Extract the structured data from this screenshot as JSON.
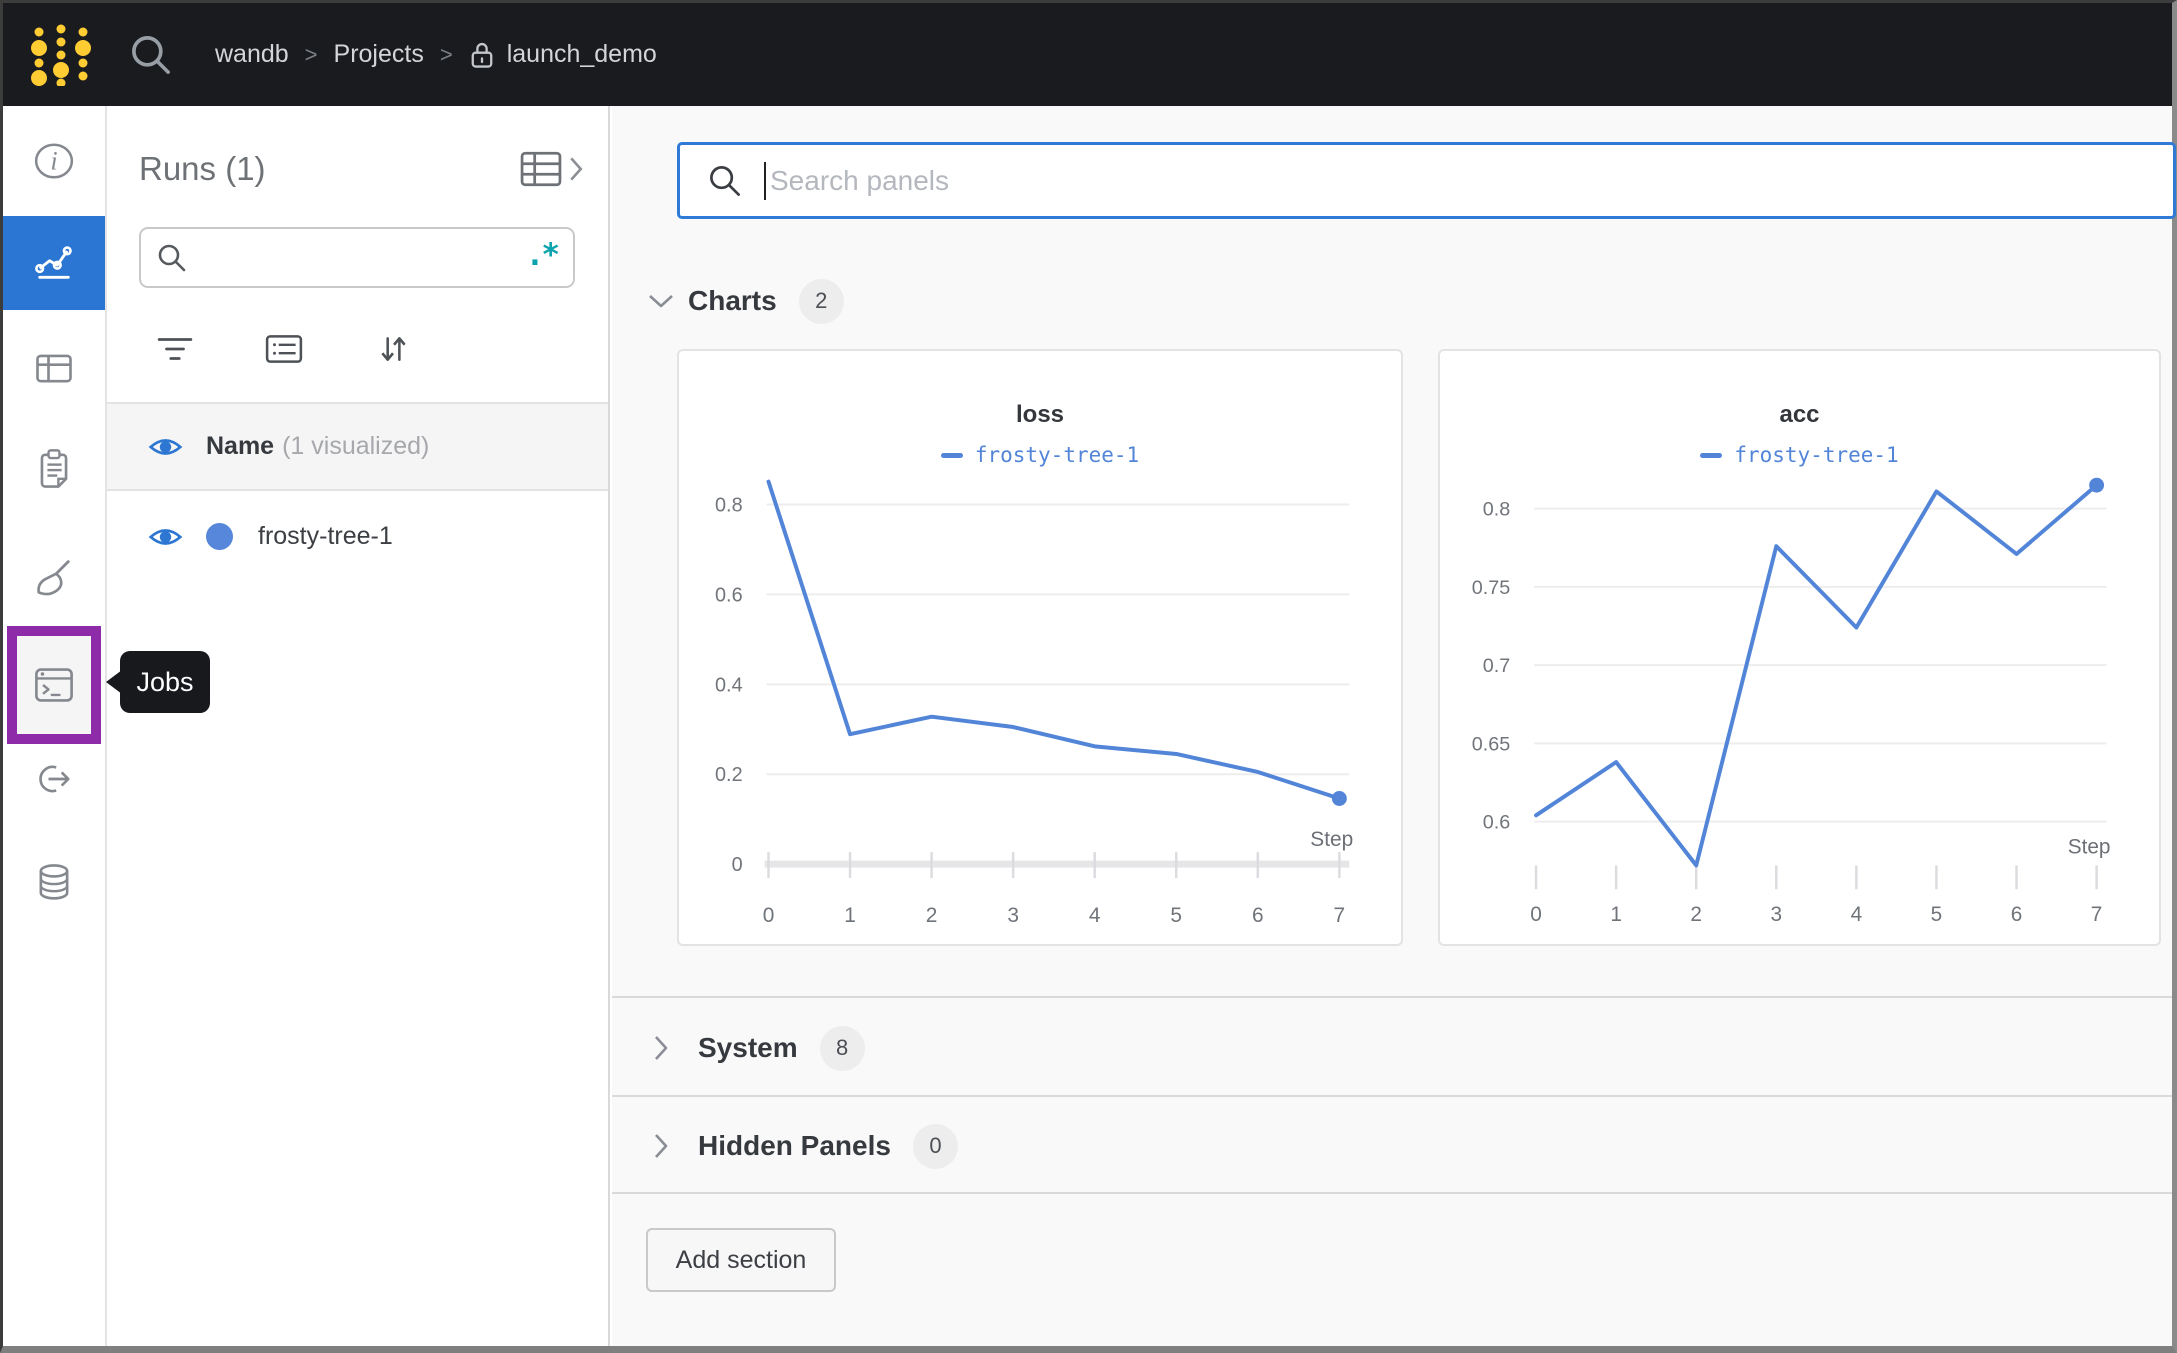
{
  "navbar": {
    "breadcrumb": {
      "org": "wandb",
      "section": "Projects",
      "project": "launch_demo",
      "separator": ">"
    }
  },
  "sidebar": {
    "tooltip": "Jobs",
    "items": [
      "info",
      "workspace-charts",
      "tables",
      "reports",
      "sweeps",
      "jobs",
      "launch",
      "artifacts"
    ],
    "active_item": "workspace-charts",
    "highlighted_item": "jobs",
    "active_color": "#2b76d2",
    "highlight_color": "#8d2ba8"
  },
  "runs_panel": {
    "title": "Runs (1)",
    "search": {
      "placeholder": "",
      "value": "",
      "regex_icon": ".*"
    },
    "columns_header": {
      "name": "Name",
      "visualized": "(1 visualized)"
    },
    "runs": [
      {
        "name": "frosty-tree-1",
        "color": "#5787da",
        "visible": true
      }
    ]
  },
  "main": {
    "panel_search": {
      "placeholder": "Search panels",
      "value": ""
    },
    "sections": [
      {
        "label": "Charts",
        "count": "2",
        "expanded": true
      },
      {
        "label": "System",
        "count": "8",
        "expanded": false
      },
      {
        "label": "Hidden Panels",
        "count": "0",
        "expanded": false
      }
    ],
    "add_section_label": "Add section"
  },
  "chart_data": [
    {
      "type": "line",
      "title": "loss",
      "xlabel": "Step",
      "x": [
        0,
        1,
        2,
        3,
        4,
        5,
        6,
        7
      ],
      "series": [
        {
          "name": "frosty-tree-1",
          "color": "#5285d8",
          "values": [
            0.851,
            0.289,
            0.328,
            0.305,
            0.262,
            0.245,
            0.205,
            0.146
          ]
        }
      ],
      "y_ticks": [
        0,
        0.2,
        0.4,
        0.6,
        0.8
      ],
      "x_ticks": [
        0,
        1,
        2,
        3,
        4,
        5,
        6,
        7
      ],
      "ylim": [
        0,
        0.9
      ],
      "xlim": [
        0,
        7
      ],
      "grid": true,
      "legend_position": "top",
      "end_marker": true,
      "zero_axis_line": true
    },
    {
      "type": "line",
      "title": "acc",
      "xlabel": "Step",
      "x": [
        0,
        1,
        2,
        3,
        4,
        5,
        6,
        7
      ],
      "series": [
        {
          "name": "frosty-tree-1",
          "color": "#5285d8",
          "values": [
            0.604,
            0.638,
            0.572,
            0.776,
            0.724,
            0.811,
            0.771,
            0.815
          ]
        }
      ],
      "y_ticks": [
        0.6,
        0.65,
        0.7,
        0.75,
        0.8
      ],
      "x_ticks": [
        0,
        1,
        2,
        3,
        4,
        5,
        6,
        7
      ],
      "ylim": [
        0.565,
        0.83
      ],
      "xlim": [
        0,
        7
      ],
      "grid": true,
      "legend_position": "top",
      "end_marker": true,
      "zero_axis_line": false
    }
  ]
}
